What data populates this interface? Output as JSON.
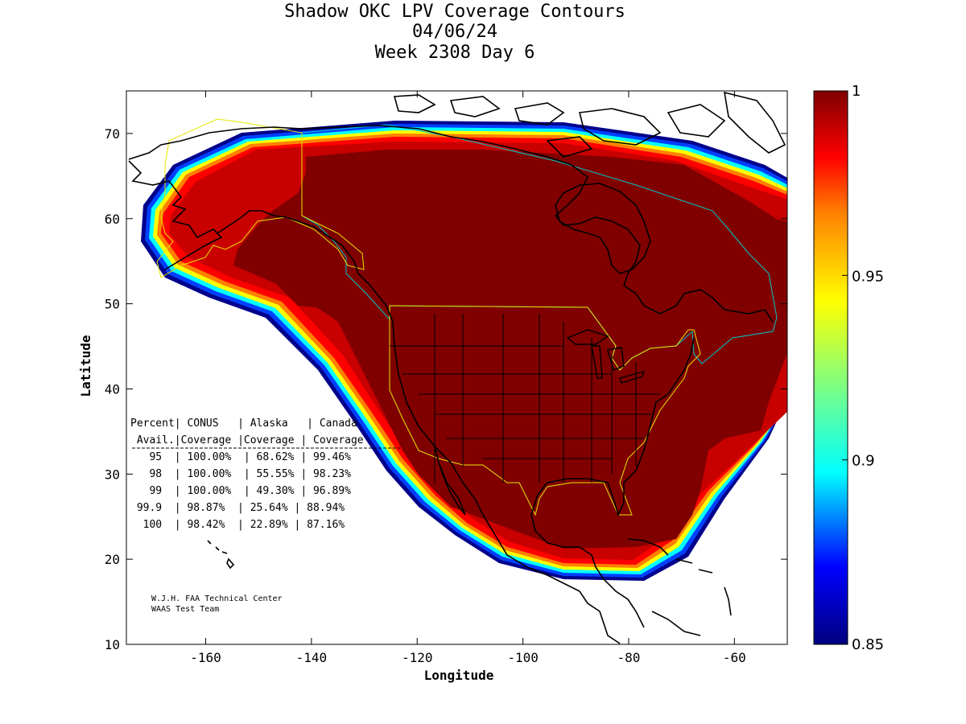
{
  "title": {
    "line1": "Shadow OKC LPV Coverage Contours",
    "line2": "04/06/24",
    "line3": "Week 2308 Day 6"
  },
  "axes": {
    "xlabel": "Longitude",
    "ylabel": "Latitude",
    "xlim": [
      -175,
      -50
    ],
    "ylim": [
      10,
      75
    ],
    "xticks": [
      -160,
      -140,
      -120,
      -100,
      -80,
      -60
    ],
    "yticks": [
      10,
      20,
      30,
      40,
      50,
      60,
      70
    ]
  },
  "colorbar": {
    "min": 0.85,
    "max": 1,
    "ticks": [
      "1",
      "0.95",
      "0.9",
      "0.85"
    ],
    "tick_values": [
      1,
      0.95,
      0.9,
      0.85
    ]
  },
  "table": {
    "header1": [
      "Percent",
      "CONUS",
      "Alaska",
      "Canada"
    ],
    "header2": [
      "Avail.",
      "Coverage",
      "Coverage",
      "Coverage"
    ],
    "rows": [
      [
        "95",
        "100.00%",
        "68.62%",
        "99.46%"
      ],
      [
        "98",
        "100.00%",
        "55.55%",
        "98.23%"
      ],
      [
        "99",
        "100.00%",
        "49.30%",
        "96.89%"
      ],
      [
        "99.9",
        "98.87%",
        "25.64%",
        "88.94%"
      ],
      [
        "100",
        "98.42%",
        "22.89%",
        "87.16%"
      ]
    ]
  },
  "credit": {
    "line1": "W.J.H. FAA Technical Center",
    "line2": "WAAS Test Team"
  },
  "colors": {
    "core": "#800000",
    "inner_red": "#c80000",
    "red": "#ff0000",
    "orange": "#ff8000",
    "yellow": "#ffff00",
    "cyan": "#00ffff",
    "blue": "#0040ff",
    "navy": "#00008c"
  }
}
